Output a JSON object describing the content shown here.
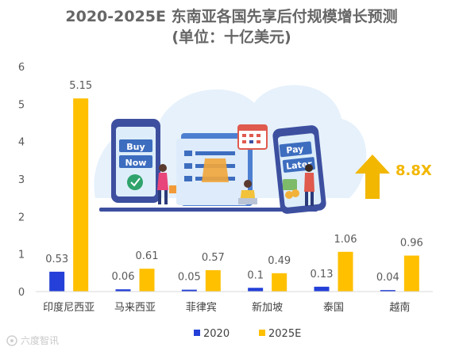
{
  "chart_data": {
    "type": "bar",
    "title": "2020-2025E 东南亚各国先享后付规模增长预测",
    "subtitle": "(单位：十亿美元)",
    "categories": [
      "印度尼西亚",
      "马来西亚",
      "菲律宾",
      "新加坡",
      "泰国",
      "越南"
    ],
    "series": [
      {
        "name": "2020",
        "color": "#2440D8",
        "values": [
          0.53,
          0.06,
          0.05,
          0.1,
          0.13,
          0.04
        ],
        "labels": [
          "0.53",
          "0.06",
          "0.05",
          "0.1",
          "0.13",
          "0.04"
        ]
      },
      {
        "name": "2025E",
        "color": "#FFC000",
        "values": [
          5.15,
          0.61,
          0.57,
          0.49,
          1.06,
          0.96
        ],
        "labels": [
          "5.15",
          "0.61",
          "0.57",
          "0.49",
          "1.06",
          "0.96"
        ]
      }
    ],
    "ylim": [
      0,
      6
    ],
    "yticks": [
      "0",
      "1",
      "2",
      "3",
      "4",
      "5",
      "6"
    ],
    "grid": false,
    "legend_position": "bottom"
  },
  "callout": {
    "text": "8.8X",
    "color": "#F2B700"
  },
  "illustration": {
    "phone_left_lines": [
      "Buy",
      "Now"
    ],
    "phone_right_lines": [
      "Pay",
      "Later"
    ]
  },
  "watermark": "六度智讯"
}
